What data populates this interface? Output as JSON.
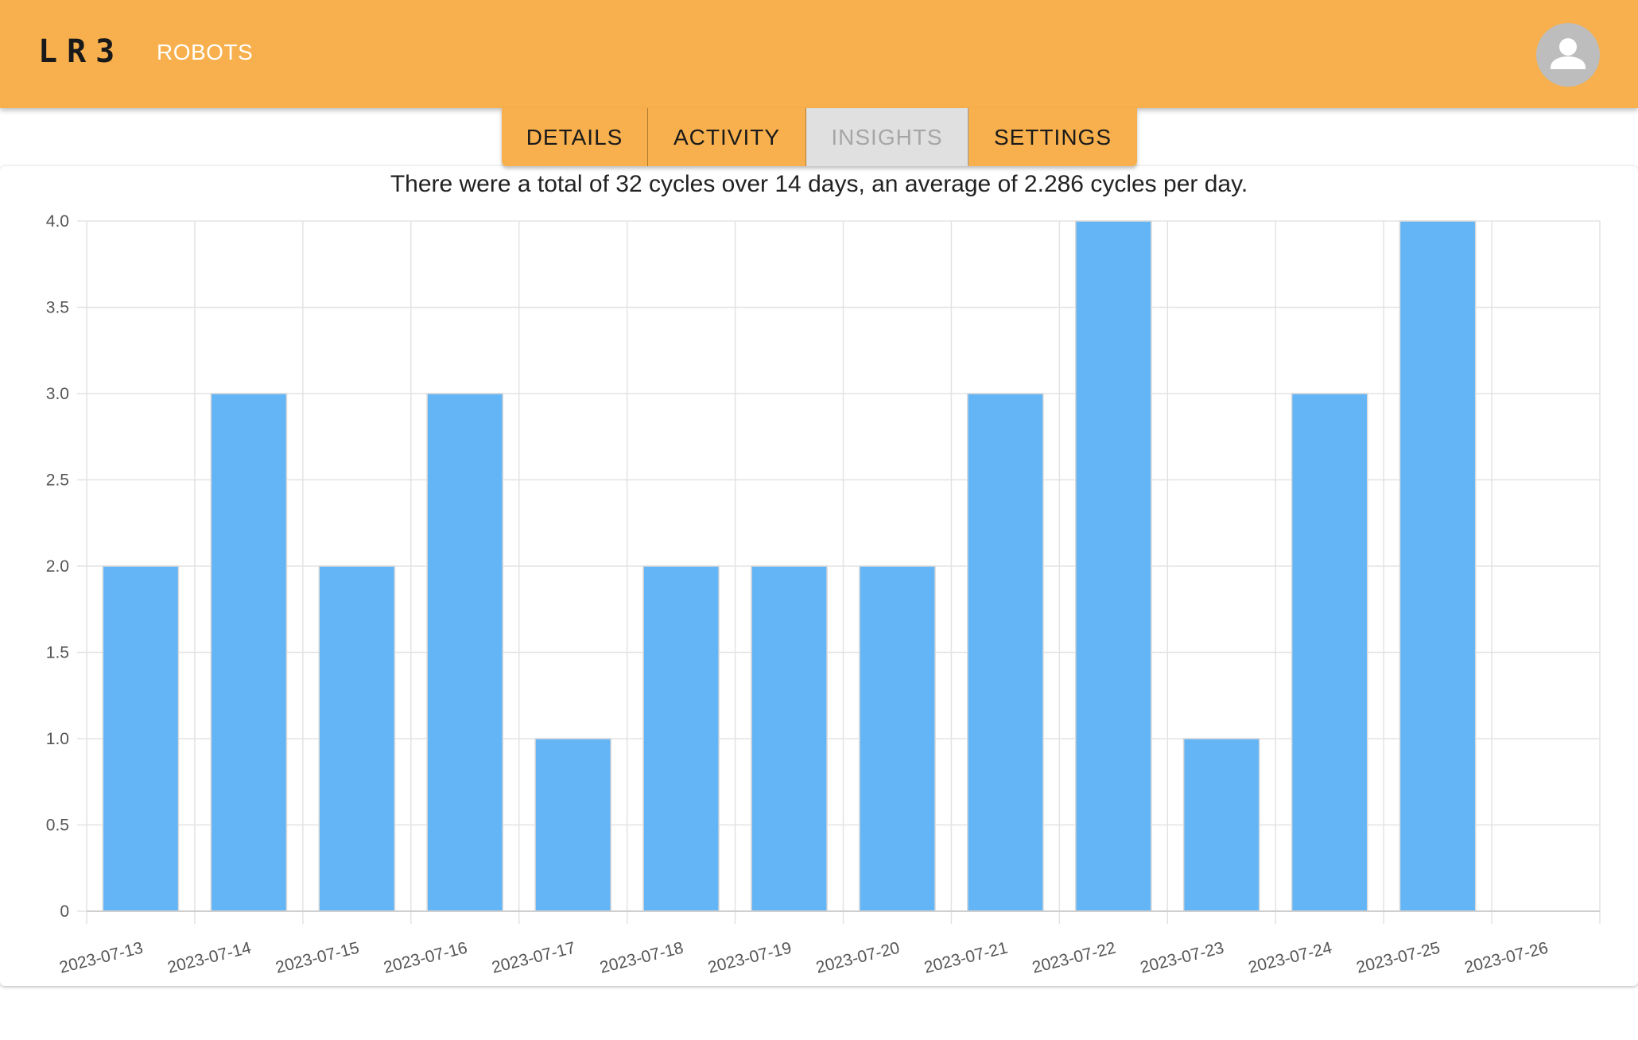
{
  "app": {
    "logo": "LR3",
    "nav_link": "ROBOTS"
  },
  "tabs": [
    {
      "label": "DETAILS",
      "active": false
    },
    {
      "label": "ACTIVITY",
      "active": false
    },
    {
      "label": "INSIGHTS",
      "active": true
    },
    {
      "label": "SETTINGS",
      "active": false
    }
  ],
  "insights": {
    "summary": "There were a total of 32 cycles over 14 days, an average of 2.286 cycles per day."
  },
  "colors": {
    "appbar": "#f7b04d",
    "bar": "#64b5f6",
    "grid": "#e3e3e3"
  },
  "icons": {
    "avatar": "account-circle-icon"
  },
  "chart_data": {
    "type": "bar",
    "categories": [
      "2023-07-13",
      "2023-07-14",
      "2023-07-15",
      "2023-07-16",
      "2023-07-17",
      "2023-07-18",
      "2023-07-19",
      "2023-07-20",
      "2023-07-21",
      "2023-07-22",
      "2023-07-23",
      "2023-07-24",
      "2023-07-25",
      "2023-07-26"
    ],
    "values": [
      2,
      3,
      2,
      3,
      1,
      2,
      2,
      2,
      3,
      4,
      1,
      3,
      4,
      null
    ],
    "ylim": [
      0,
      4
    ],
    "yticks": [
      "0",
      "0.5",
      "1.0",
      "1.5",
      "2.0",
      "2.5",
      "3.0",
      "3.5",
      "4.0"
    ],
    "grid": true,
    "legend": "none"
  }
}
